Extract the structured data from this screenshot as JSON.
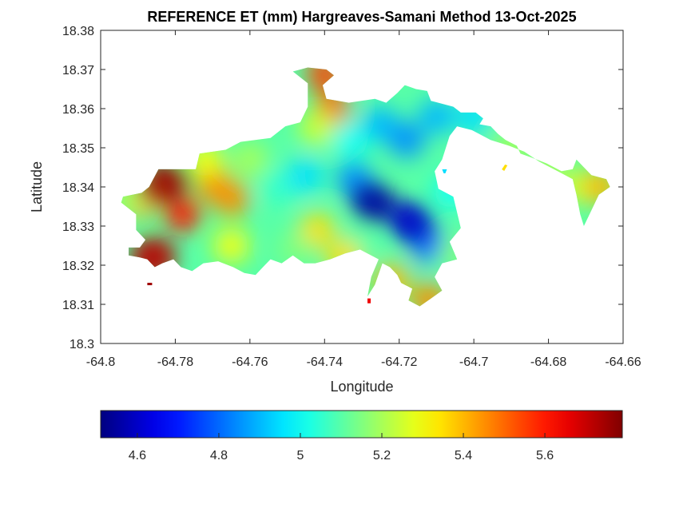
{
  "chart_data": {
    "type": "heatmap",
    "subtype": "filled-contour-map",
    "title": "REFERENCE ET (mm) Hargreaves-Samani Method  13-Oct-2025",
    "xlabel": "Longitude",
    "ylabel": "Latitude",
    "xlim": [
      -64.8,
      -64.66
    ],
    "ylim": [
      18.3,
      18.38
    ],
    "xticks": [
      -64.8,
      -64.78,
      -64.76,
      -64.74,
      -64.72,
      -64.7,
      -64.68,
      -64.66
    ],
    "xtick_labels": [
      "-64.8",
      "-64.78",
      "-64.76",
      "-64.74",
      "-64.72",
      "-64.7",
      "-64.68",
      "-64.66"
    ],
    "yticks": [
      18.3,
      18.31,
      18.32,
      18.33,
      18.34,
      18.35,
      18.36,
      18.37,
      18.38
    ],
    "ytick_labels": [
      "18.3",
      "18.31",
      "18.32",
      "18.33",
      "18.34",
      "18.35",
      "18.36",
      "18.37",
      "18.38"
    ],
    "grid": false,
    "colormap": "jet",
    "colorbar": {
      "location": "bottom",
      "range": [
        4.51,
        5.79
      ],
      "ticks": [
        4.6,
        4.8,
        5.0,
        5.2,
        5.4,
        5.6
      ],
      "tick_labels": [
        "4.6",
        "4.8",
        "5",
        "5.2",
        "5.4",
        "5.6"
      ],
      "colors": [
        "#00008f",
        "#0000ff",
        "#0080ff",
        "#00ffff",
        "#80ff80",
        "#ffff00",
        "#ff8000",
        "#ff0000",
        "#800000"
      ]
    },
    "value_units": "mm",
    "field_samples": [
      {
        "lon": -64.783,
        "lat": 18.341,
        "value": 5.75,
        "note": "maximum, west end"
      },
      {
        "lon": -64.786,
        "lat": 18.322,
        "value": 5.72
      },
      {
        "lon": -64.778,
        "lat": 18.333,
        "value": 5.6
      },
      {
        "lon": -64.79,
        "lat": 18.336,
        "value": 5.45
      },
      {
        "lon": -64.793,
        "lat": 18.337,
        "value": 5.2
      },
      {
        "lon": -64.77,
        "lat": 18.341,
        "value": 5.45
      },
      {
        "lon": -64.765,
        "lat": 18.337,
        "value": 5.45
      },
      {
        "lon": -64.772,
        "lat": 18.347,
        "value": 5.3
      },
      {
        "lon": -64.76,
        "lat": 18.347,
        "value": 5.2
      },
      {
        "lon": -64.765,
        "lat": 18.325,
        "value": 5.3
      },
      {
        "lon": -64.752,
        "lat": 18.34,
        "value": 5.05
      },
      {
        "lon": -64.745,
        "lat": 18.343,
        "value": 4.95
      },
      {
        "lon": -64.742,
        "lat": 18.329,
        "value": 5.35
      },
      {
        "lon": -64.748,
        "lat": 18.324,
        "value": 5.15
      },
      {
        "lon": -64.74,
        "lat": 18.369,
        "value": 5.55
      },
      {
        "lon": -64.738,
        "lat": 18.36,
        "value": 5.5
      },
      {
        "lon": -64.742,
        "lat": 18.355,
        "value": 5.25
      },
      {
        "lon": -64.733,
        "lat": 18.352,
        "value": 5.0
      },
      {
        "lon": -64.725,
        "lat": 18.356,
        "value": 4.9
      },
      {
        "lon": -64.718,
        "lat": 18.352,
        "value": 4.85
      },
      {
        "lon": -64.71,
        "lat": 18.358,
        "value": 4.9
      },
      {
        "lon": -64.7,
        "lat": 18.358,
        "value": 4.95
      },
      {
        "lon": -64.727,
        "lat": 18.336,
        "value": 4.55,
        "note": "minimum"
      },
      {
        "lon": -64.717,
        "lat": 18.331,
        "value": 4.6
      },
      {
        "lon": -64.712,
        "lat": 18.325,
        "value": 4.8
      },
      {
        "lon": -64.732,
        "lat": 18.342,
        "value": 4.85
      },
      {
        "lon": -64.73,
        "lat": 18.326,
        "value": 5.1
      },
      {
        "lon": -64.735,
        "lat": 18.322,
        "value": 5.35
      },
      {
        "lon": -64.722,
        "lat": 18.316,
        "value": 5.4
      },
      {
        "lon": -64.712,
        "lat": 18.311,
        "value": 5.45
      },
      {
        "lon": -64.705,
        "lat": 18.323,
        "value": 5.15
      },
      {
        "lon": -64.706,
        "lat": 18.339,
        "value": 5.0
      },
      {
        "lon": -64.69,
        "lat": 18.35,
        "value": 5.2
      },
      {
        "lon": -64.68,
        "lat": 18.345,
        "value": 5.2
      },
      {
        "lon": -64.672,
        "lat": 18.34,
        "value": 5.25
      },
      {
        "lon": -64.666,
        "lat": 18.34,
        "value": 5.4
      }
    ]
  }
}
